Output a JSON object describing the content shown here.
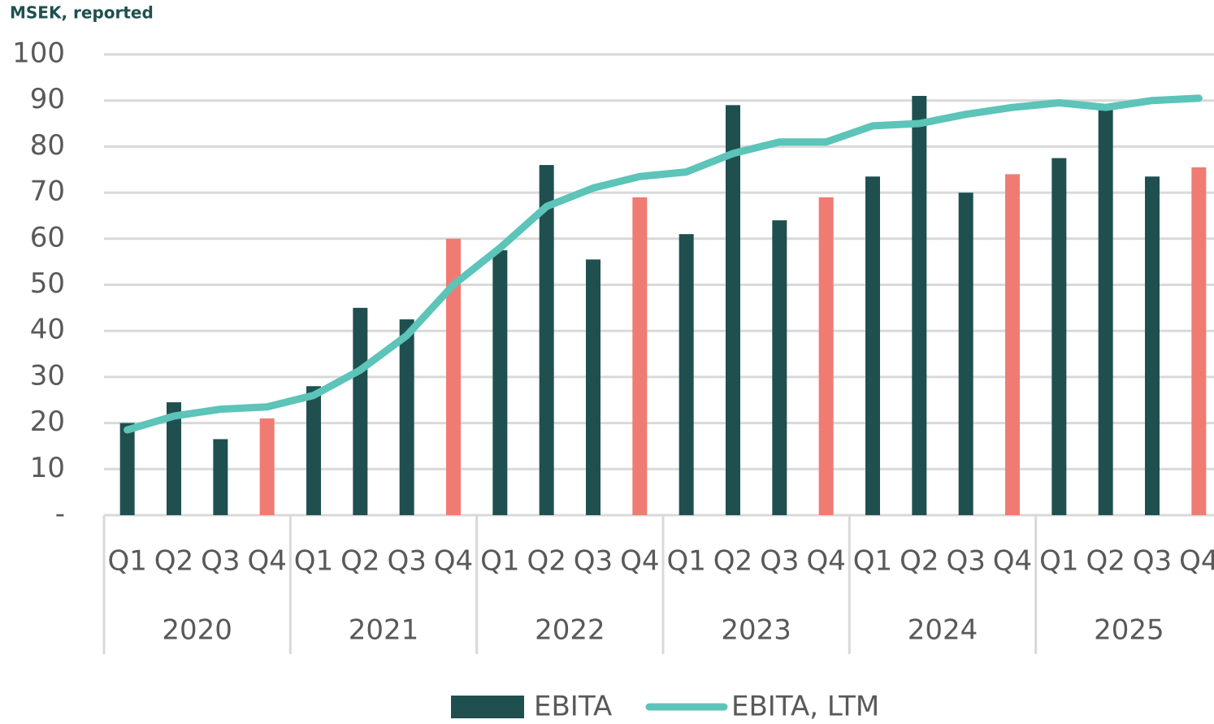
{
  "chart_data": {
    "type": "bar",
    "y_axis_label": "MSEK, reported",
    "categories": [
      "Q1",
      "Q2",
      "Q3",
      "Q4",
      "Q1",
      "Q2",
      "Q3",
      "Q4",
      "Q1",
      "Q2",
      "Q3",
      "Q4",
      "Q1",
      "Q2",
      "Q3",
      "Q4",
      "Q1",
      "Q2",
      "Q3",
      "Q4",
      "Q1",
      "Q2",
      "Q3",
      "Q4"
    ],
    "years": [
      "2020",
      "2021",
      "2022",
      "2023",
      "2024",
      "2025"
    ],
    "series": [
      {
        "name": "EBITA",
        "type": "bar",
        "color": "#1f504f",
        "colors": [
          "#1f504f",
          "#1f504f",
          "#1f504f",
          "#f07b72",
          "#1f504f",
          "#1f504f",
          "#1f504f",
          "#f07b72",
          "#1f504f",
          "#1f504f",
          "#1f504f",
          "#f07b72",
          "#1f504f",
          "#1f504f",
          "#1f504f",
          "#f07b72",
          "#1f504f",
          "#1f504f",
          "#1f504f",
          "#f07b72",
          "#1f504f",
          "#1f504f",
          "#1f504f",
          "#f07b72"
        ],
        "values": [
          20,
          24.5,
          16.5,
          21,
          28,
          45,
          42.5,
          60,
          57.5,
          76,
          55.5,
          69,
          61,
          89,
          64,
          69,
          73.5,
          91,
          70,
          74,
          77.5,
          88,
          73.5,
          75.5
        ]
      },
      {
        "name": "EBITA, LTM",
        "type": "line",
        "color": "#5cc4b8",
        "values": [
          18.5,
          21.5,
          23,
          23.5,
          26,
          31.5,
          39,
          50,
          58,
          67,
          71,
          73.5,
          74.5,
          78.5,
          81,
          81,
          84.5,
          85,
          87,
          88.5,
          89.5,
          88.5,
          90,
          90.5
        ]
      }
    ],
    "ylim": [
      0,
      100
    ],
    "yticks": [
      {
        "value": 0,
        "label": "-"
      },
      10,
      20,
      30,
      40,
      50,
      60,
      70,
      80,
      90,
      100
    ],
    "grid": true,
    "legend": "bottom"
  }
}
